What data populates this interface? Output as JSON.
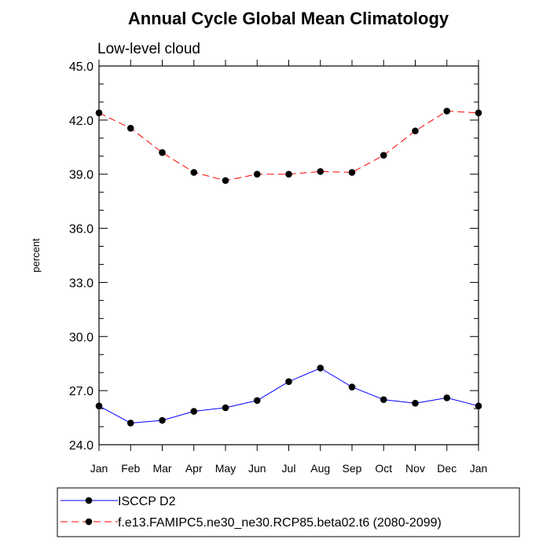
{
  "chart_data": {
    "type": "line",
    "title": "Annual Cycle Global Mean Climatology",
    "subtitle": "Low-level cloud",
    "xlabel": "",
    "ylabel": "percent",
    "categories": [
      "Jan",
      "Feb",
      "Mar",
      "Apr",
      "May",
      "Jun",
      "Jul",
      "Aug",
      "Sep",
      "Oct",
      "Nov",
      "Dec",
      "Jan"
    ],
    "ylim": [
      24.0,
      45.0
    ],
    "yticks": [
      "24.0",
      "27.0",
      "30.0",
      "33.0",
      "36.0",
      "39.0",
      "42.0",
      "45.0"
    ],
    "legend_position": "bottom",
    "series": [
      {
        "name": "ISCCP D2",
        "color": "#0000ff",
        "dash": "solid",
        "values": [
          26.15,
          25.2,
          25.35,
          25.85,
          26.05,
          26.45,
          27.5,
          28.25,
          27.2,
          26.5,
          26.3,
          26.6,
          26.15
        ]
      },
      {
        "name": "f.e13.FAMIPC5.ne30_ne30.RCP85.beta02.t6 (2080-2099)",
        "color": "#ff0000",
        "dash": "dashed",
        "values": [
          42.4,
          41.55,
          40.2,
          39.1,
          38.65,
          39.0,
          39.0,
          39.15,
          39.1,
          40.05,
          41.4,
          42.5,
          42.4
        ]
      }
    ]
  }
}
